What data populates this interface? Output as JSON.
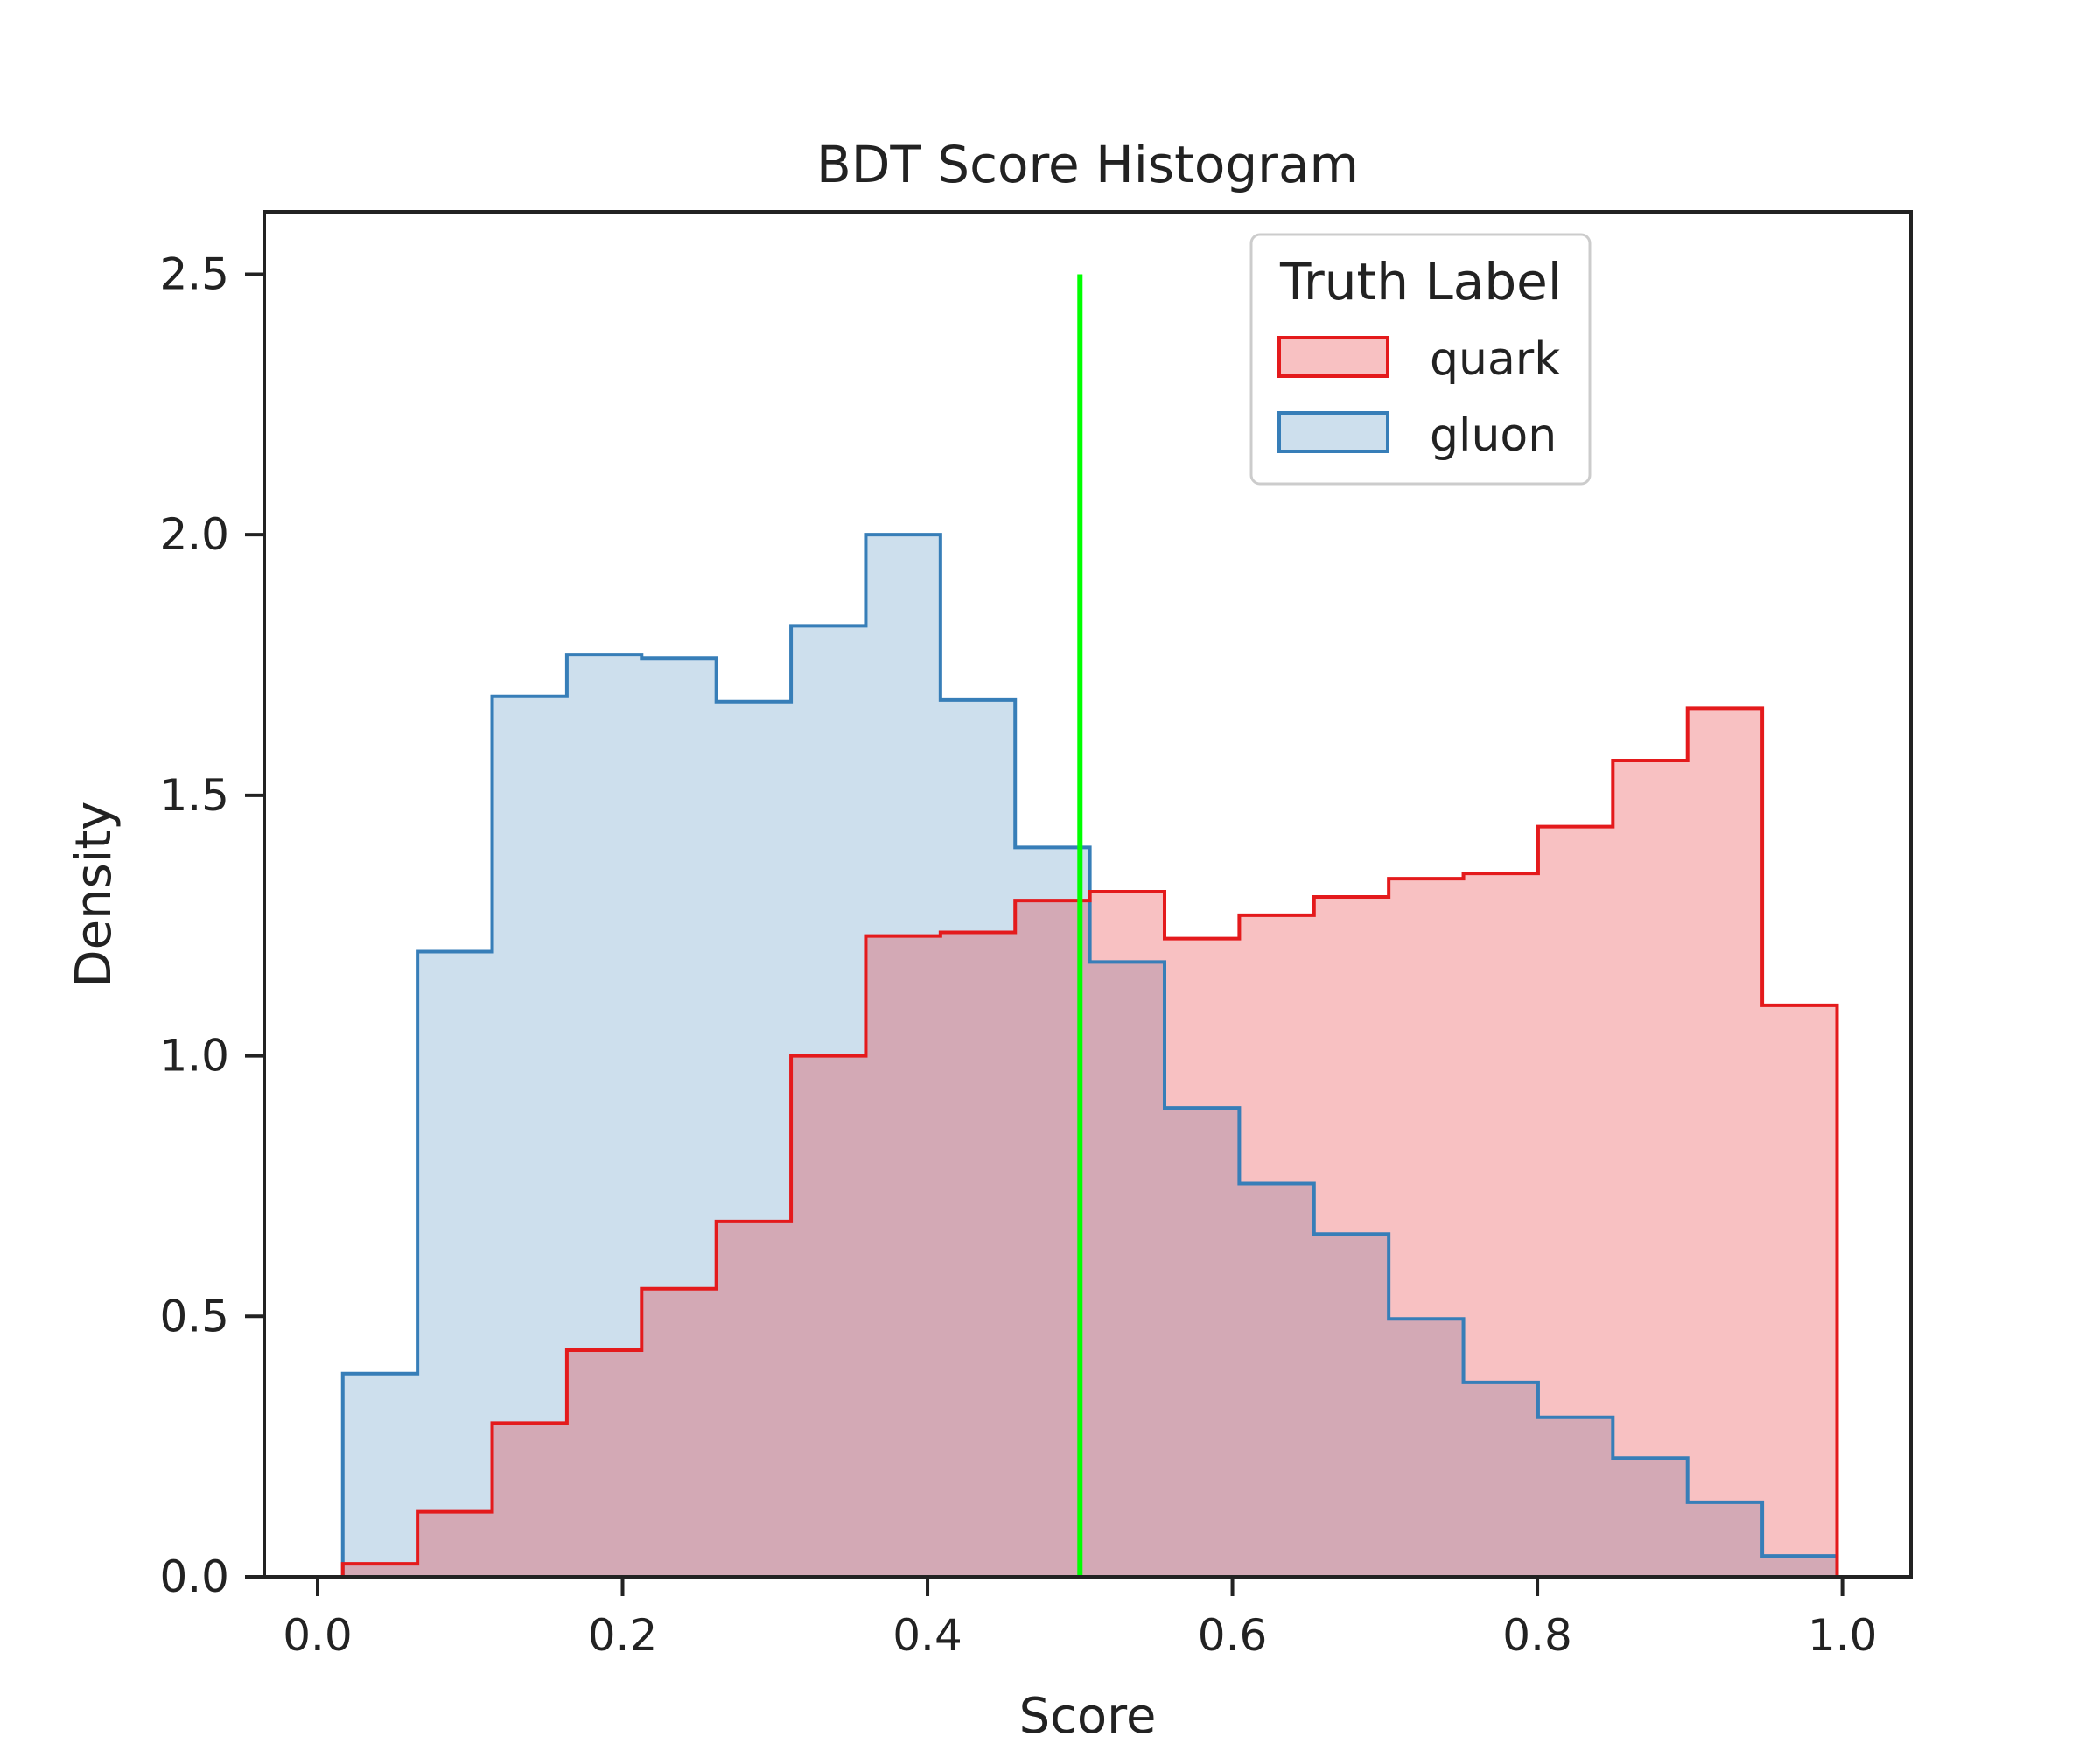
{
  "chart_data": {
    "type": "histogram",
    "title": "BDT Score Histogram",
    "xlabel": "Score",
    "ylabel": "Density",
    "xlim": [
      -0.035,
      1.045
    ],
    "ylim": [
      0,
      2.62
    ],
    "xticks": [
      "0.0",
      "0.2",
      "0.4",
      "0.6",
      "0.8",
      "1.0"
    ],
    "yticks": [
      "0.0",
      "0.5",
      "1.0",
      "1.5",
      "2.0",
      "2.5"
    ],
    "bin_edges": [
      0.0165,
      0.0655,
      0.1145,
      0.1635,
      0.2125,
      0.2615,
      0.3105,
      0.3595,
      0.4085,
      0.4575,
      0.5065,
      0.5555,
      0.6045,
      0.6535,
      0.7025,
      0.7515,
      0.8005,
      0.8495,
      0.8985,
      0.9475,
      0.9965
    ],
    "legend": {
      "title": "Truth Label",
      "position": "top-right"
    },
    "series": [
      {
        "name": "quark",
        "color": "#e41a1c",
        "values": [
          0.025,
          0.125,
          0.295,
          0.435,
          0.553,
          0.682,
          1.0,
          1.23,
          1.237,
          1.298,
          1.315,
          1.225,
          1.27,
          1.305,
          1.34,
          1.35,
          1.44,
          1.567,
          1.667,
          1.097
        ]
      },
      {
        "name": "gluon",
        "color": "#377eb8",
        "values": [
          0.39,
          1.2,
          1.69,
          1.77,
          1.763,
          1.68,
          1.825,
          2.0,
          1.683,
          1.4,
          1.18,
          0.9,
          0.755,
          0.658,
          0.495,
          0.373,
          0.306,
          0.228,
          0.143,
          0.04
        ]
      }
    ],
    "threshold": {
      "x": 0.5,
      "y_range": [
        0,
        2.5
      ],
      "color": "#00ff00"
    }
  }
}
